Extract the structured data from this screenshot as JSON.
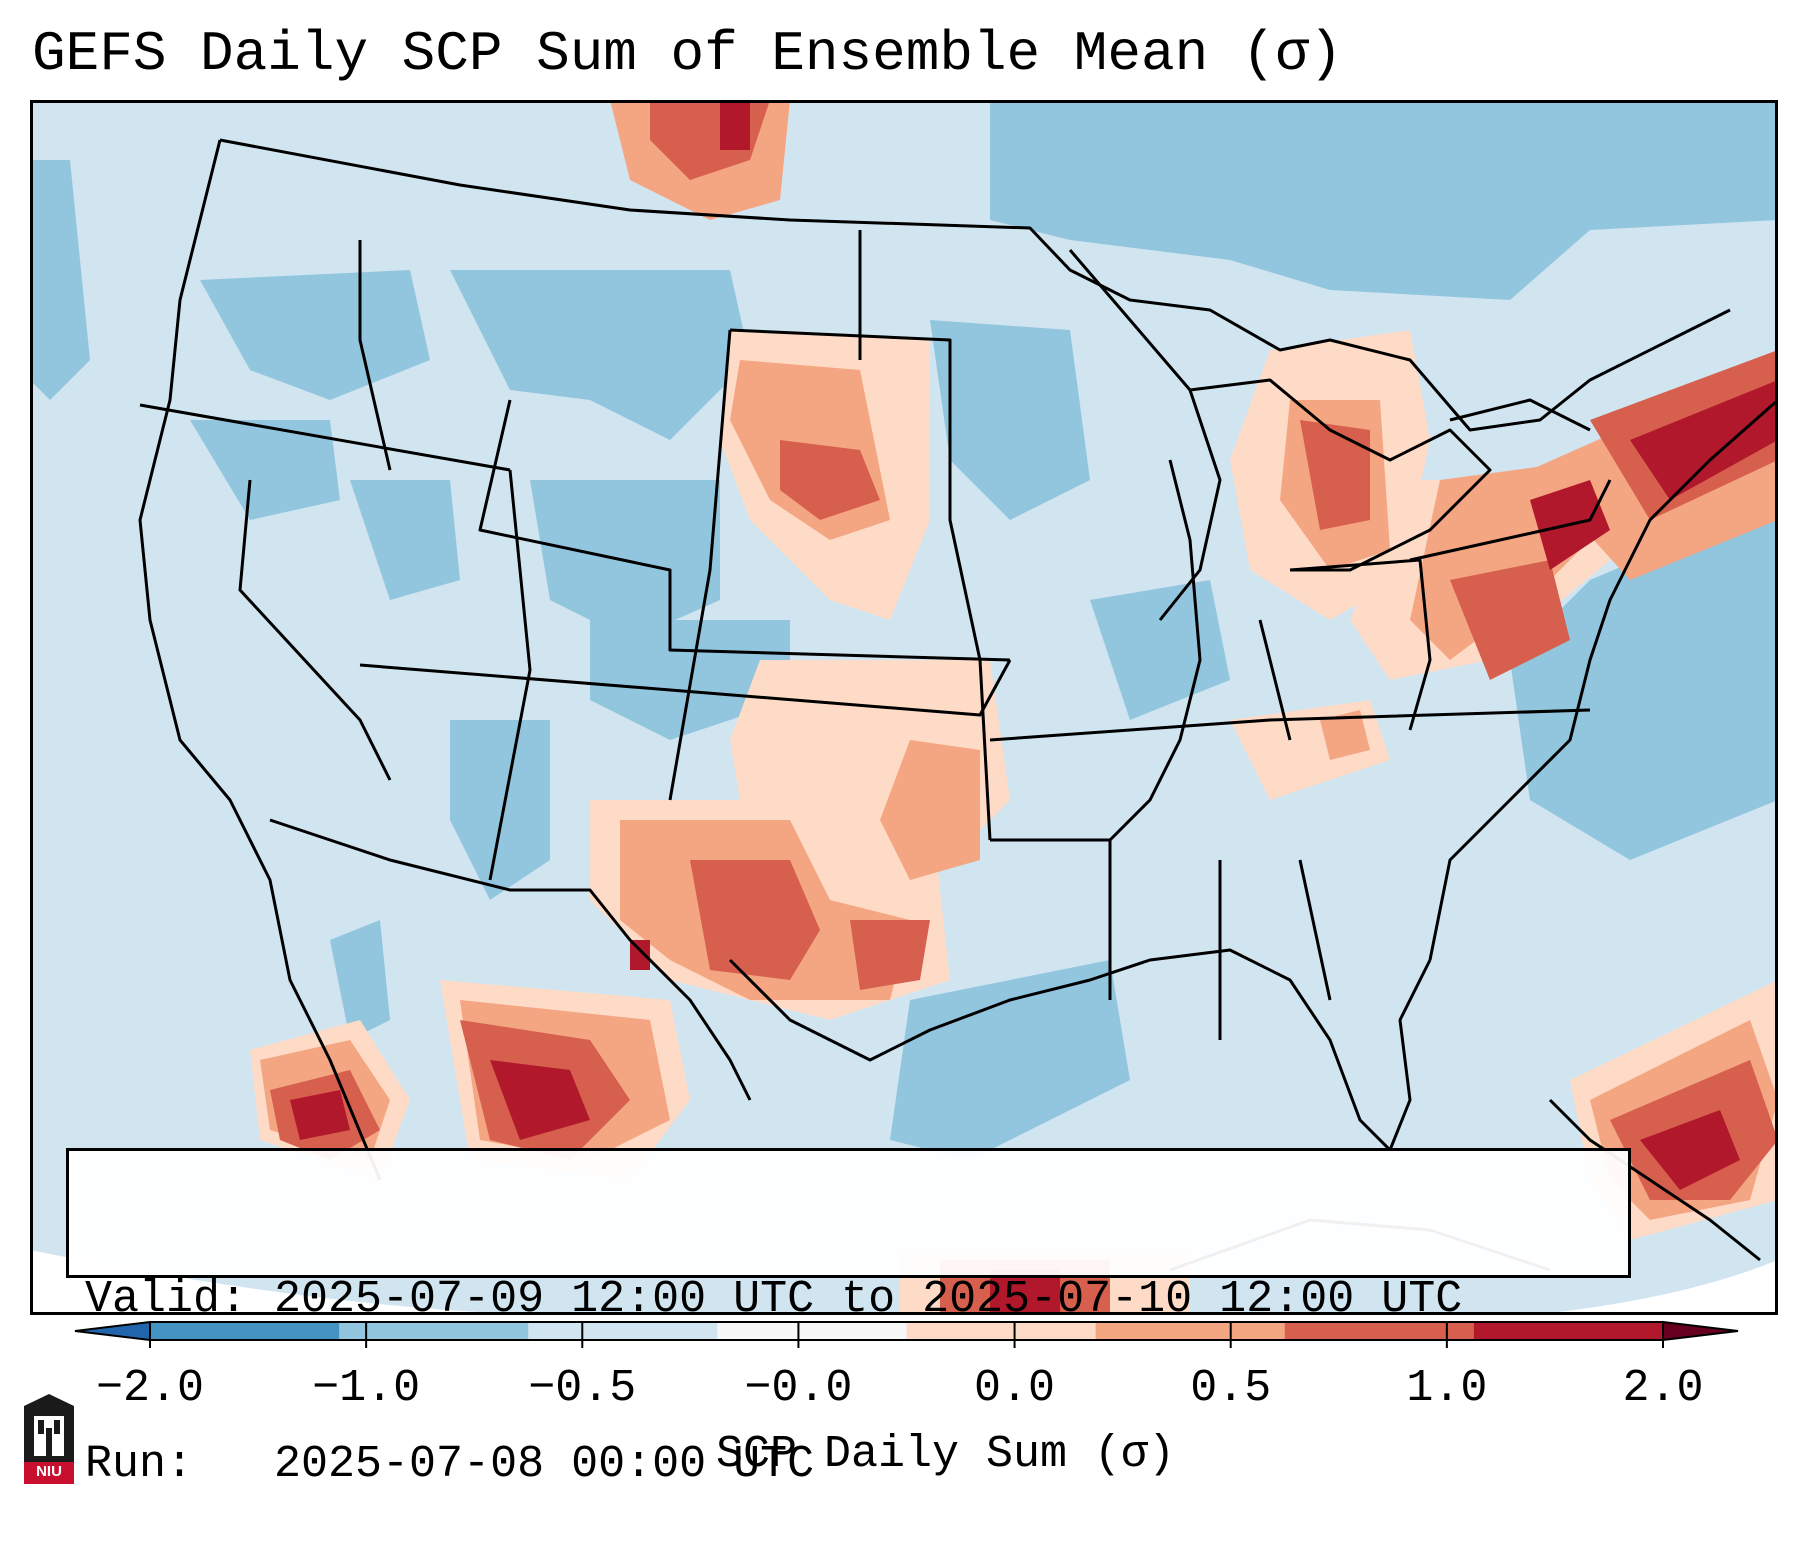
{
  "title": "GEFS Daily SCP Sum of Ensemble Mean (σ)",
  "info": {
    "valid": "Valid: 2025-07-09 12:00 UTC to 2025-07-10 12:00 UTC",
    "run": "Run:   2025-07-08 00:00 UTC"
  },
  "colorbar": {
    "label": "SCP Daily Sum (σ)",
    "ticks": [
      "−2.0",
      "−1.0",
      "−0.5",
      "−0.0",
      "0.0",
      "0.5",
      "1.0",
      "2.0"
    ],
    "colors": [
      "#4393c3",
      "#92c5de",
      "#d1e5f0",
      "#f7f7f7",
      "#fddbc7",
      "#f4a582",
      "#d6604d",
      "#b2182b"
    ],
    "extend": "both"
  },
  "logo": {
    "text": "NIU"
  },
  "map_colors": {
    "background": "#d1e5f0",
    "blue_medium": "#92c5de",
    "red_light": "#fddbc7",
    "red_medium": "#f4a582",
    "red_strong": "#d6604d",
    "red_dark": "#b2182b",
    "outside": "#ffffff",
    "border": "#000000"
  }
}
